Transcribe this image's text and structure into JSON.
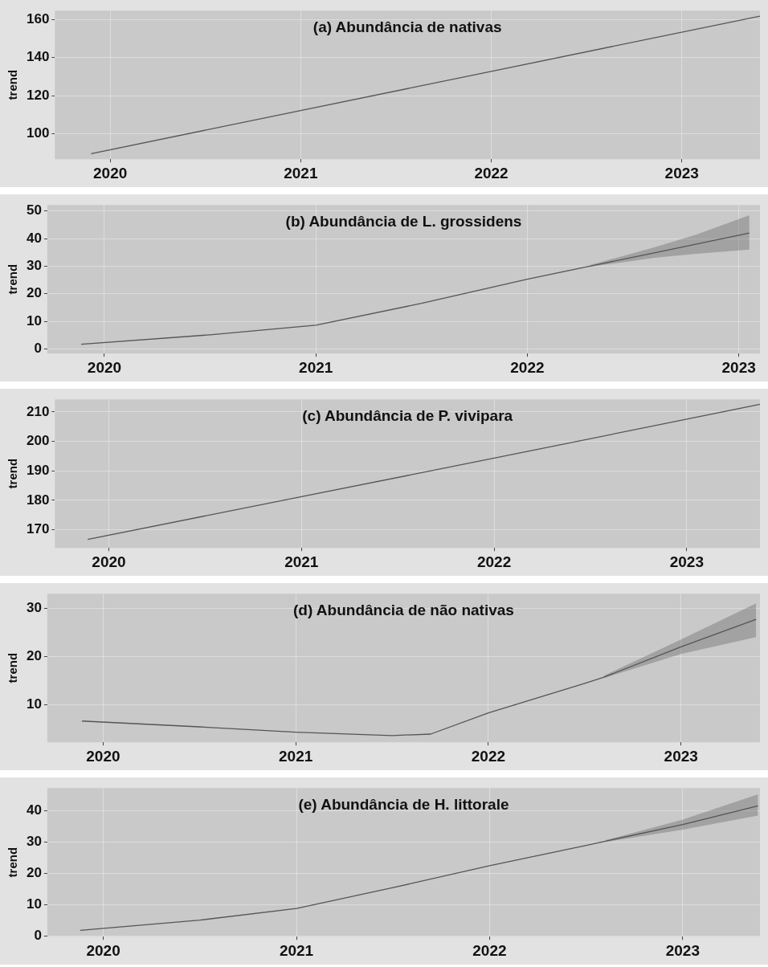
{
  "chart_data": [
    {
      "type": "line",
      "title": "(a) Abundância de nativas",
      "ylabel": "trend",
      "xlim": [
        2019.71,
        2023.41
      ],
      "xticks": [
        2020,
        2021,
        2022,
        2023
      ],
      "ylim": [
        86.7,
        164.7
      ],
      "yticks": [
        100,
        120,
        140,
        160
      ],
      "grid": true,
      "series": [
        {
          "color": "#555555",
          "x": [
            2019.9,
            2021,
            2022,
            2023.41
          ],
          "values": [
            89.6,
            112.2,
            132.8,
            161.8
          ]
        }
      ]
    },
    {
      "type": "line",
      "title": "(b) Abundância de L. grossidens",
      "ylabel": "trend",
      "xlim": [
        2019.73,
        2023.1
      ],
      "xticks": [
        2020,
        2021,
        2022,
        2023
      ],
      "ylim": [
        -1.7,
        52.2
      ],
      "yticks": [
        0,
        10,
        20,
        30,
        40,
        50
      ],
      "grid": true,
      "series": [
        {
          "color": "#555555",
          "x": [
            2019.89,
            2020.5,
            2021,
            2021.5,
            2022,
            2022.3,
            2022.6,
            2022.8,
            2023.05
          ],
          "values": [
            1.7,
            5.1,
            8.6,
            16.5,
            25.3,
            30.1,
            34.8,
            38,
            42
          ],
          "lower": [
            null,
            null,
            null,
            null,
            null,
            29.8,
            33,
            34.5,
            36
          ],
          "upper": [
            null,
            null,
            null,
            null,
            null,
            30.5,
            36.8,
            41.5,
            48.5
          ]
        }
      ]
    },
    {
      "type": "line",
      "title": "(c) Abundância de P. vivipara",
      "ylabel": "trend",
      "xlim": [
        2019.72,
        2023.38
      ],
      "xticks": [
        2020,
        2021,
        2022,
        2023
      ],
      "ylim": [
        163.8,
        214.3
      ],
      "yticks": [
        170,
        180,
        190,
        200,
        210
      ],
      "grid": true,
      "series": [
        {
          "color": "#555555",
          "x": [
            2019.89,
            2021,
            2022,
            2023.38
          ],
          "values": [
            166.7,
            181.2,
            194.3,
            212.6
          ]
        }
      ]
    },
    {
      "type": "line",
      "title": "(d) Abundância de não nativas",
      "ylabel": "trend",
      "xlim": [
        2019.71,
        2023.41
      ],
      "xticks": [
        2020,
        2021,
        2022,
        2023
      ],
      "ylim": [
        2.2,
        33
      ],
      "yticks": [
        10,
        20,
        30
      ],
      "grid": true,
      "series": [
        {
          "color": "#555555",
          "x": [
            2019.89,
            2020.5,
            2021,
            2021.5,
            2021.7,
            2022,
            2022.5,
            2022.6,
            2023,
            2023.39
          ],
          "values": [
            6.6,
            5.4,
            4.3,
            3.6,
            3.9,
            8.3,
            14.4,
            15.7,
            22,
            27.7
          ],
          "lower": [
            null,
            null,
            null,
            null,
            null,
            null,
            null,
            15.5,
            20.5,
            24
          ],
          "upper": [
            null,
            null,
            null,
            null,
            null,
            null,
            null,
            16,
            23.5,
            31
          ]
        }
      ]
    },
    {
      "type": "line",
      "title": "(e) Abundância de H. littorale",
      "ylabel": "trend",
      "xlim": [
        2019.71,
        2023.4
      ],
      "xticks": [
        2020,
        2021,
        2022,
        2023
      ],
      "ylim": [
        -0.3,
        47.3
      ],
      "yticks": [
        0,
        10,
        20,
        30,
        40
      ],
      "grid": true,
      "series": [
        {
          "color": "#555555",
          "x": [
            2019.88,
            2020.5,
            2021,
            2021.5,
            2022,
            2022.5,
            2022.6,
            2023,
            2023.39
          ],
          "values": [
            1.7,
            5,
            8.7,
            15.4,
            22.4,
            28.9,
            30.3,
            35.6,
            41.6
          ],
          "lower": [
            null,
            null,
            null,
            null,
            null,
            null,
            30,
            34,
            38.5
          ],
          "upper": [
            null,
            null,
            null,
            null,
            null,
            null,
            30.6,
            37.2,
            45.3
          ]
        }
      ]
    }
  ]
}
